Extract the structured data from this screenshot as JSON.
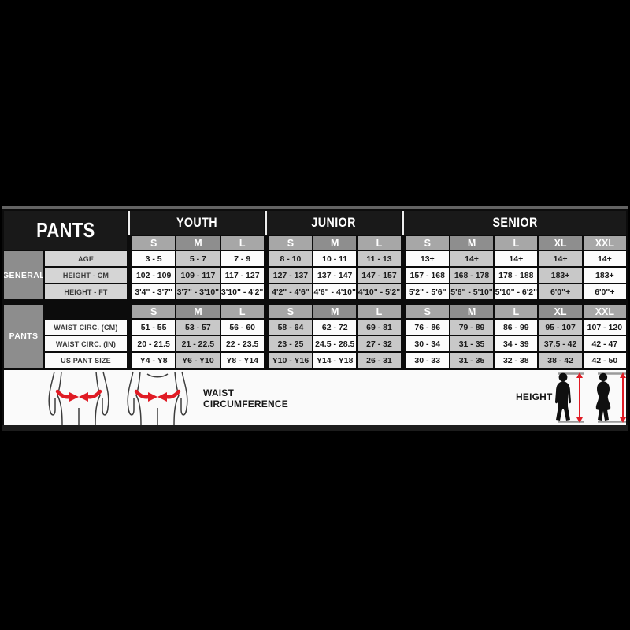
{
  "chart_data": {
    "type": "table",
    "title": "PANTS",
    "column_groups": [
      {
        "label": "YOUTH",
        "sizes": [
          "S",
          "M",
          "L"
        ]
      },
      {
        "label": "JUNIOR",
        "sizes": [
          "S",
          "M",
          "L"
        ]
      },
      {
        "label": "SENIOR",
        "sizes": [
          "S",
          "M",
          "L",
          "XL",
          "XXL"
        ]
      }
    ],
    "sections": [
      {
        "label": "GENERAL",
        "rows": [
          {
            "label": "AGE",
            "values": [
              "3 - 5",
              "5 - 7",
              "7 - 9",
              "8 - 10",
              "10 - 11",
              "11 - 13",
              "13+",
              "14+",
              "14+",
              "14+",
              "14+"
            ]
          },
          {
            "label": "HEIGHT - CM",
            "values": [
              "102 - 109",
              "109 - 117",
              "117 - 127",
              "127 - 137",
              "137 - 147",
              "147 - 157",
              "157 - 168",
              "168 - 178",
              "178 - 188",
              "183+",
              "183+"
            ]
          },
          {
            "label": "HEIGHT - FT",
            "values": [
              "3'4\" - 3'7\"",
              "3'7\" - 3'10\"",
              "3'10\" - 4'2\"",
              "4'2\" - 4'6\"",
              "4'6\" - 4'10\"",
              "4'10\" - 5'2\"",
              "5'2\" - 5'6\"",
              "5'6\" - 5'10\"",
              "5'10\" - 6'2\"",
              "6'0\"+",
              "6'0\"+"
            ]
          }
        ]
      },
      {
        "label": "PANTS",
        "rows": [
          {
            "label": "WAIST CIRC. (CM)",
            "values": [
              "51 - 55",
              "53 - 57",
              "56 - 60",
              "58 - 64",
              "62 - 72",
              "69 - 81",
              "76 - 86",
              "79 - 89",
              "86 - 99",
              "95 - 107",
              "107 - 120"
            ]
          },
          {
            "label": "WAIST CIRC. (IN)",
            "values": [
              "20 - 21.5",
              "21 - 22.5",
              "22 - 23.5",
              "23 - 25",
              "24.5 - 28.5",
              "27 - 32",
              "30 - 34",
              "31 - 35",
              "34 - 39",
              "37.5 - 42",
              "42 - 47"
            ]
          },
          {
            "label": "US PANT SIZE",
            "values": [
              "Y4 - Y8",
              "Y6 - Y10",
              "Y8 - Y14",
              "Y10 - Y16",
              "Y14 - Y18",
              "26 - 31",
              "30 - 33",
              "31 - 35",
              "32 - 38",
              "38 - 42",
              "42 - 50"
            ]
          }
        ]
      }
    ]
  },
  "legend": {
    "waist_label": "WAIST CIRCUMFERENCE",
    "height_label": "HEIGHT"
  },
  "colors": {
    "accent_red": "#e01b24",
    "header_dark": "#191919",
    "size_light": "#a7a7a7",
    "size_dark": "#8e8e8e",
    "cell_white": "#fcfcfc",
    "cell_gray": "#c8c8c8",
    "section_gray": "#8d8d8d"
  }
}
